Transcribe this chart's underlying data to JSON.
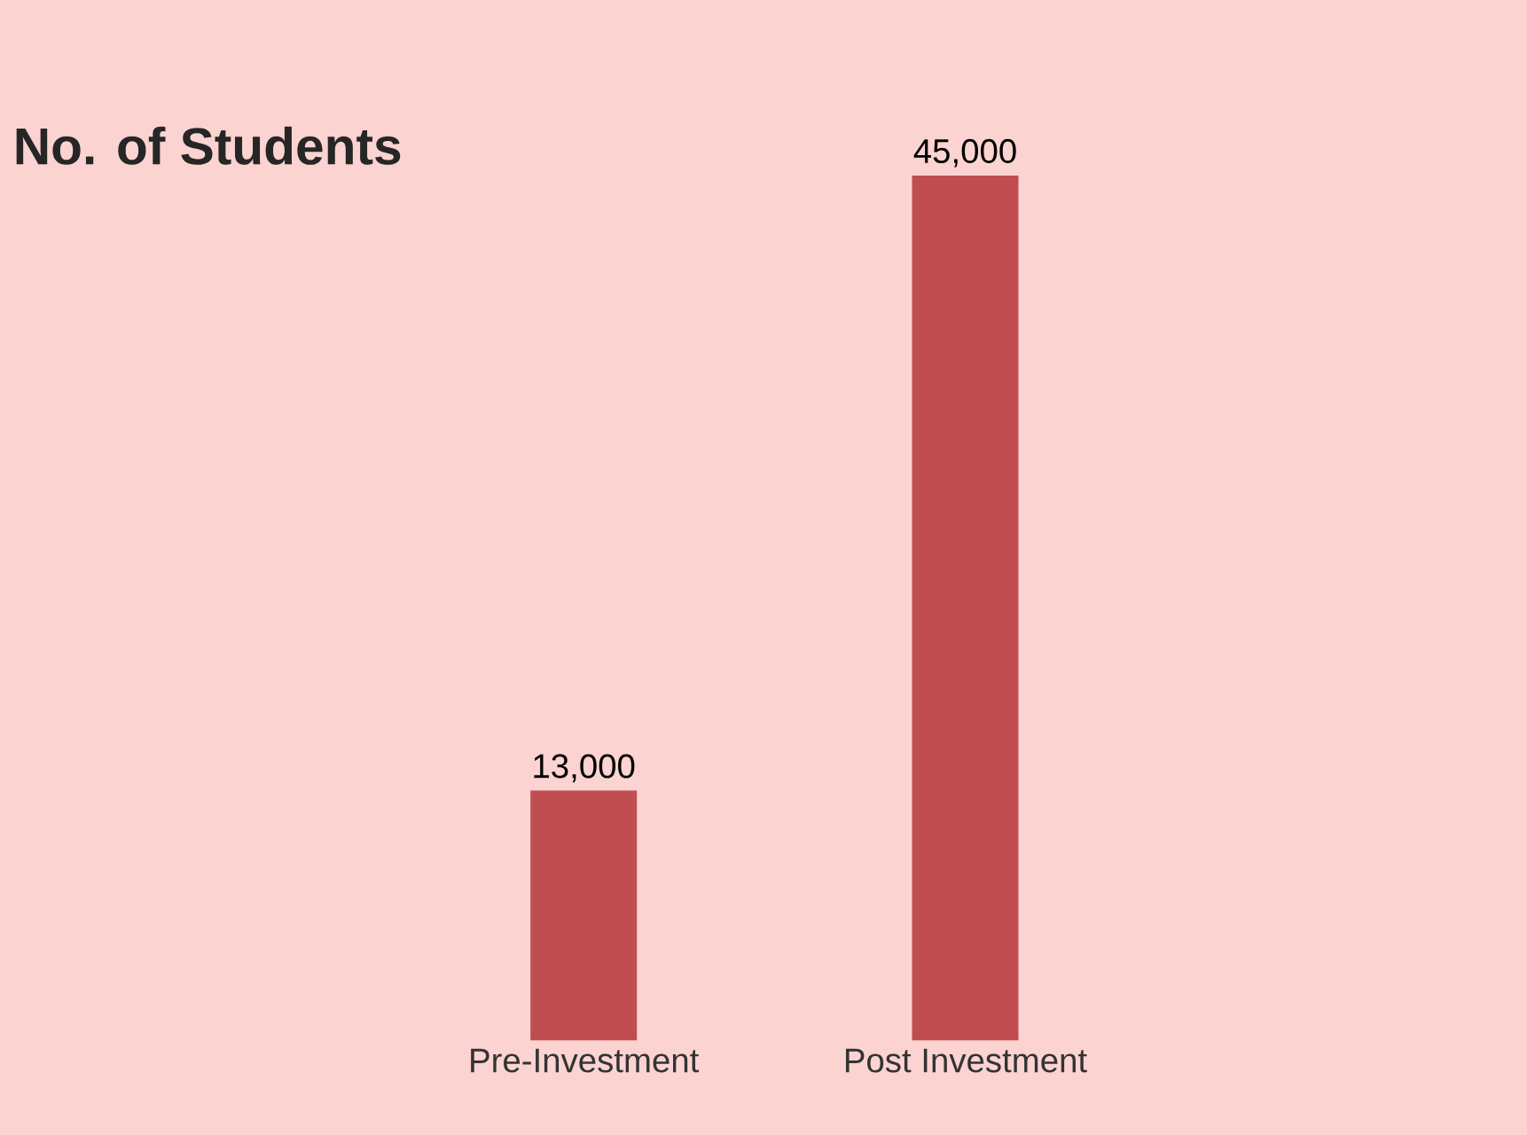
{
  "chart_data": {
    "type": "bar",
    "title": "No. of Students",
    "categories": [
      "Pre-Investment",
      "Post Investment"
    ],
    "values": [
      13000,
      45000
    ],
    "color": "#c04d50",
    "value_labels": [
      "13,000",
      "45,000"
    ]
  }
}
